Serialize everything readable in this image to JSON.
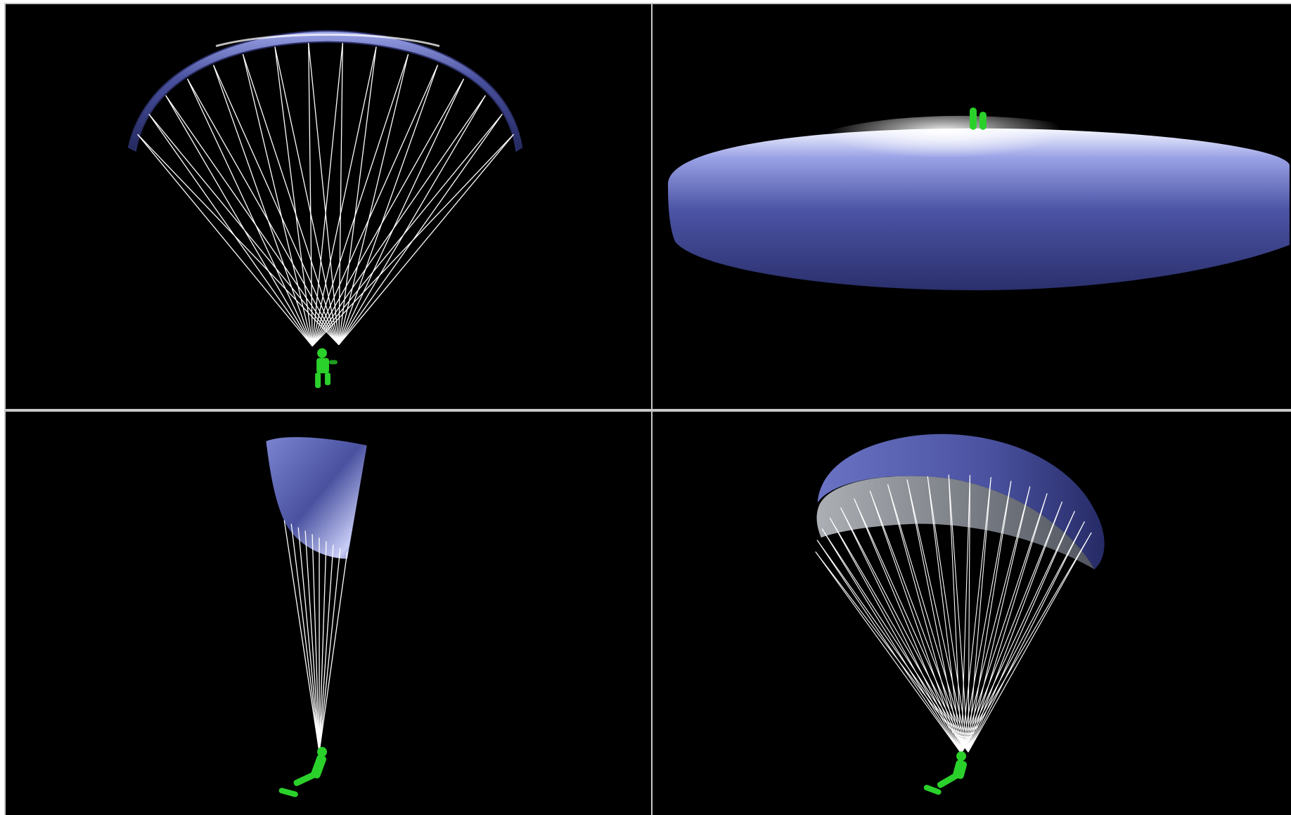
{
  "app": {
    "window_title": ""
  },
  "viewports": [
    {
      "id": "front-view",
      "label": ""
    },
    {
      "id": "top-view",
      "label": ""
    },
    {
      "id": "side-view",
      "label": ""
    },
    {
      "id": "perspective-view",
      "label": ""
    }
  ],
  "colors": {
    "background": "#000000",
    "border": "#c8c8c8",
    "canopy": "#4a52a0",
    "canopy_highlight": "#e8ecff",
    "lines": "#ffffff",
    "pilot": "#22cc22"
  },
  "icons": [
    "paraglider-canopy",
    "suspension-lines",
    "pilot-figure"
  ]
}
